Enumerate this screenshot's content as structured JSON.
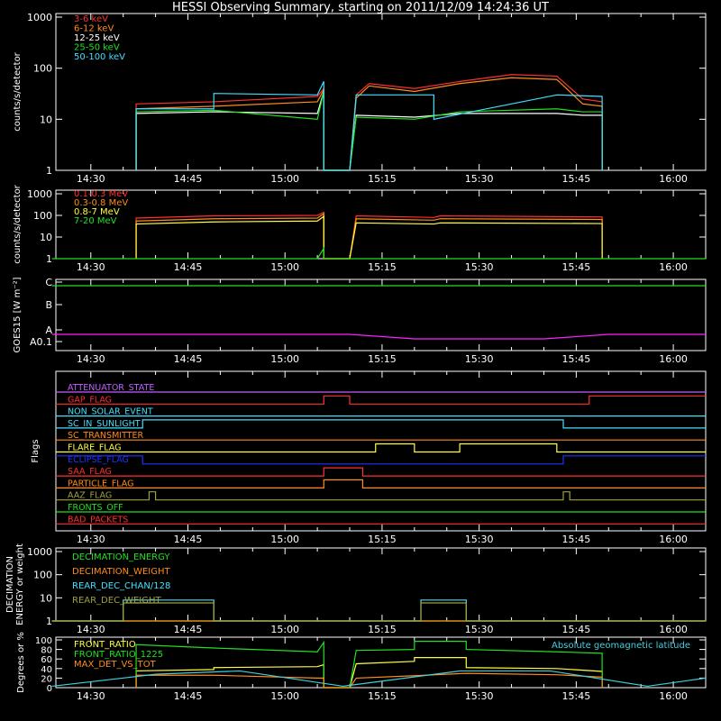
{
  "title": "HESSI Observing Summary, starting on 2011/12/09 14:24:36 UT",
  "time_ticks": [
    "14:30",
    "14:45",
    "15:00",
    "15:15",
    "15:30",
    "15:45",
    "16:00"
  ],
  "chart_data": [
    {
      "type": "line",
      "ylabel": "counts/s/detector",
      "y_scale": "log",
      "ylim": [
        1,
        1000
      ],
      "yticks": [
        "1",
        "10",
        "100",
        "1000"
      ],
      "series": [
        {
          "name": "3-6 keV",
          "color": "#ff3030",
          "x": [
            "14:37",
            "14:37",
            "14:49",
            "15:05",
            "15:06",
            "15:06",
            "15:10",
            "15:11",
            "15:13",
            "15:20",
            "15:27",
            "15:35",
            "15:42",
            "15:46",
            "15:49",
            "15:49"
          ],
          "y": [
            1,
            20,
            22,
            28,
            40,
            1,
            1,
            30,
            50,
            40,
            55,
            75,
            70,
            25,
            22,
            1
          ]
        },
        {
          "name": "6-12 keV",
          "color": "#ff8c1a",
          "x": [
            "14:37",
            "14:37",
            "14:49",
            "15:05",
            "15:06",
            "15:06",
            "15:10",
            "15:11",
            "15:13",
            "15:20",
            "15:27",
            "15:35",
            "15:42",
            "15:46",
            "15:49",
            "15:49"
          ],
          "y": [
            1,
            16,
            18,
            22,
            38,
            1,
            1,
            26,
            45,
            35,
            50,
            65,
            60,
            20,
            18,
            1
          ]
        },
        {
          "name": "12-25 keV",
          "color": "#ffffff",
          "x": [
            "14:37",
            "14:37",
            "14:49",
            "15:05",
            "15:06",
            "15:06",
            "15:10",
            "15:11",
            "15:20",
            "15:27",
            "15:42",
            "15:46",
            "15:49",
            "15:49"
          ],
          "y": [
            1,
            13,
            14,
            13,
            35,
            1,
            1,
            12,
            11,
            13,
            13,
            12,
            12,
            1
          ]
        },
        {
          "name": "25-50 keV",
          "color": "#20e020",
          "x": [
            "14:37",
            "14:37",
            "14:49",
            "15:05",
            "15:06",
            "15:06",
            "15:10",
            "15:11",
            "15:20",
            "15:27",
            "15:42",
            "15:46",
            "15:49",
            "15:49"
          ],
          "y": [
            1,
            14,
            15,
            10,
            35,
            1,
            1,
            11,
            10,
            14,
            16,
            14,
            14,
            1
          ]
        },
        {
          "name": "50-100 keV",
          "color": "#40e0ff",
          "x": [
            "14:37",
            "14:37",
            "14:49",
            "14:49",
            "15:05",
            "15:06",
            "15:06",
            "15:10",
            "15:11",
            "15:23",
            "15:23",
            "15:42",
            "15:49",
            "15:49"
          ],
          "y": [
            1,
            16,
            16,
            32,
            30,
            55,
            1,
            1,
            30,
            30,
            10,
            30,
            28,
            1
          ]
        }
      ]
    },
    {
      "type": "line",
      "ylabel": "counts/s/detector",
      "y_scale": "log",
      "ylim": [
        1,
        1000
      ],
      "yticks": [
        "1",
        "10",
        "100",
        "1000"
      ],
      "series": [
        {
          "name": "0.1-0.3 MeV",
          "color": "#ff3030",
          "x": [
            "14:37",
            "14:37",
            "14:49",
            "15:05",
            "15:06",
            "15:06",
            "15:10",
            "15:11",
            "15:23",
            "15:24",
            "15:49",
            "15:49"
          ],
          "y": [
            1,
            75,
            95,
            100,
            140,
            1,
            1,
            95,
            80,
            95,
            85,
            1
          ]
        },
        {
          "name": "0.3-0.8 MeV",
          "color": "#ff8c1a",
          "x": [
            "14:37",
            "14:37",
            "14:49",
            "15:05",
            "15:06",
            "15:06",
            "15:10",
            "15:11",
            "15:23",
            "15:24",
            "15:49",
            "15:49"
          ],
          "y": [
            1,
            55,
            70,
            75,
            120,
            1,
            1,
            70,
            60,
            70,
            65,
            1
          ]
        },
        {
          "name": "0.8-7 MeV",
          "color": "#ffff40",
          "x": [
            "14:37",
            "14:37",
            "14:49",
            "15:05",
            "15:06",
            "15:06",
            "15:10",
            "15:11",
            "15:23",
            "15:24",
            "15:49",
            "15:49"
          ],
          "y": [
            1,
            40,
            50,
            55,
            90,
            1,
            1,
            45,
            40,
            45,
            42,
            1
          ]
        },
        {
          "name": "7-20 MeV",
          "color": "#20e020",
          "x": [
            "14:24",
            "15:05",
            "15:06",
            "15:06",
            "15:10",
            "15:11",
            "16:05"
          ],
          "y": [
            1,
            1,
            3,
            1,
            1,
            1,
            1
          ]
        }
      ]
    },
    {
      "type": "line",
      "ylabel": "GOES15 [W m⁻²]",
      "yticks": [
        "A0.1",
        "A",
        "B",
        "C"
      ],
      "series": [
        {
          "name": "",
          "color": "#20e020",
          "x": [
            "14:24",
            "14:45",
            "15:00",
            "15:15",
            "15:30",
            "15:45",
            "16:05"
          ],
          "y": [
            "C",
            "C",
            "C",
            "C",
            "C",
            "C",
            "C"
          ]
        },
        {
          "name": "",
          "color": "#ff20ff",
          "x": [
            "14:24",
            "14:35",
            "14:45",
            "15:00",
            "15:10",
            "15:20",
            "15:30",
            "15:40",
            "15:50",
            "16:00",
            "16:05"
          ],
          "y": [
            "A0.1",
            "A0.1",
            "A0.1",
            "A0.1",
            "A0.1",
            "A",
            "A",
            "A",
            "A0.1",
            "A0.1",
            "A0.1"
          ]
        }
      ]
    },
    {
      "type": "line",
      "ylabel": "Flags",
      "series": [
        {
          "name": "ATTENUATOR_STATE",
          "color": "#c060ff",
          "states": [
            [
              "14:24",
              0
            ]
          ]
        },
        {
          "name": "GAP_FLAG",
          "color": "#ff3030",
          "states": [
            [
              "14:24",
              0
            ],
            [
              "15:06",
              1
            ],
            [
              "15:10",
              0
            ],
            [
              "15:47",
              1
            ]
          ]
        },
        {
          "name": "NON_SOLAR_EVENT",
          "color": "#40e0ff",
          "states": [
            [
              "14:24",
              0
            ]
          ]
        },
        {
          "name": "SC_IN_SUNLIGHT",
          "color": "#40e0ff",
          "states": [
            [
              "14:24",
              0
            ],
            [
              "14:38",
              1
            ],
            [
              "15:43",
              0
            ]
          ]
        },
        {
          "name": "SC_TRANSMITTER",
          "color": "#ff8c1a",
          "states": [
            [
              "14:24",
              0
            ]
          ]
        },
        {
          "name": "FLARE_FLAG",
          "color": "#ffff40",
          "states": [
            [
              "14:24",
              0
            ],
            [
              "15:14",
              1
            ],
            [
              "15:20",
              0
            ],
            [
              "15:27",
              1
            ],
            [
              "15:42",
              0
            ]
          ]
        },
        {
          "name": "ECLIPSE_FLAG",
          "color": "#2030ff",
          "states": [
            [
              "14:24",
              1
            ],
            [
              "14:38",
              0
            ],
            [
              "15:43",
              1
            ]
          ]
        },
        {
          "name": "SAA_FLAG",
          "color": "#ff3030",
          "states": [
            [
              "14:24",
              0
            ],
            [
              "15:06",
              1
            ],
            [
              "15:12",
              0
            ]
          ]
        },
        {
          "name": "PARTICLE_FLAG",
          "color": "#ff8c1a",
          "states": [
            [
              "14:24",
              0
            ],
            [
              "15:06",
              1
            ],
            [
              "15:12",
              0
            ]
          ]
        },
        {
          "name": "AAZ_FLAG",
          "color": "#a0a040",
          "states": [
            [
              "14:24",
              0
            ],
            [
              "14:39",
              1
            ],
            [
              "14:40",
              0
            ],
            [
              "15:43",
              1
            ],
            [
              "15:44",
              0
            ]
          ]
        },
        {
          "name": "FRONTS_OFF",
          "color": "#20e020",
          "states": [
            [
              "14:24",
              0
            ]
          ]
        },
        {
          "name": "BAD_PACKETS",
          "color": "#ff3030",
          "states": [
            [
              "14:24",
              0
            ]
          ]
        }
      ]
    },
    {
      "type": "line",
      "ylabel": "DECIMATION ENERGY or weight",
      "y_scale": "log",
      "ylim": [
        1,
        1000
      ],
      "yticks": [
        "1",
        "10",
        "100",
        "1000"
      ],
      "series": [
        {
          "name": "DECIMATION_ENERGY",
          "color": "#20e020",
          "x": [
            "14:24",
            "16:05"
          ],
          "y": [
            1,
            1
          ]
        },
        {
          "name": "DECIMATION_WEIGHT",
          "color": "#ff8c1a",
          "x": [
            "14:24",
            "16:05"
          ],
          "y": [
            1,
            1
          ]
        },
        {
          "name": "REAR_DEC_CHAN/128",
          "color": "#40e0ff",
          "x": [
            "14:24",
            "14:35",
            "14:35",
            "14:49",
            "14:49",
            "15:21",
            "15:21",
            "15:28",
            "15:28",
            "16:05"
          ],
          "y": [
            1,
            1,
            8,
            8,
            1,
            1,
            8,
            8,
            1,
            1
          ]
        },
        {
          "name": "REAR_DEC_WEIGHT",
          "color": "#a0a040",
          "x": [
            "14:24",
            "14:35",
            "14:35",
            "14:49",
            "14:49",
            "15:21",
            "15:21",
            "15:28",
            "15:28",
            "16:05"
          ],
          "y": [
            1,
            1,
            6,
            6,
            1,
            1,
            6,
            6,
            1,
            1
          ]
        }
      ]
    },
    {
      "type": "line",
      "ylabel": "Degrees or %",
      "ylim": [
        0,
        100
      ],
      "yticks": [
        "0",
        "20",
        "40",
        "60",
        "80",
        "100"
      ],
      "series": [
        {
          "name": "FRONT_RATIO",
          "color": "#ffff40",
          "x": [
            "14:37",
            "14:37",
            "14:49",
            "14:49",
            "15:05",
            "15:06",
            "15:06",
            "15:10",
            "15:11",
            "15:20",
            "15:20",
            "15:28",
            "15:28",
            "15:42",
            "15:49",
            "15:49"
          ],
          "y": [
            0,
            35,
            38,
            42,
            44,
            48,
            0,
            0,
            50,
            55,
            63,
            63,
            42,
            40,
            34,
            0
          ]
        },
        {
          "name": "FRONT_RATIO_1225",
          "color": "#20e020",
          "x": [
            "14:37",
            "14:37",
            "14:49",
            "15:05",
            "15:06",
            "15:06",
            "15:10",
            "15:11",
            "15:20",
            "15:20",
            "15:28",
            "15:28",
            "15:42",
            "15:49",
            "15:49"
          ],
          "y": [
            0,
            90,
            83,
            75,
            95,
            0,
            0,
            78,
            80,
            97,
            97,
            80,
            75,
            72,
            0
          ]
        },
        {
          "name": "MAX_DET_VS_TOT",
          "color": "#ff8c1a",
          "x": [
            "14:37",
            "14:37",
            "14:49",
            "15:05",
            "15:06",
            "15:06",
            "15:10",
            "15:11",
            "15:20",
            "15:28",
            "15:42",
            "15:49",
            "15:49"
          ],
          "y": [
            0,
            26,
            26,
            20,
            20,
            0,
            0,
            20,
            25,
            30,
            27,
            22,
            0
          ]
        },
        {
          "name": "Absolute geomagnetic latitude",
          "color": "#40d0e0",
          "x": [
            "14:24",
            "14:40",
            "14:53",
            "15:09",
            "15:27",
            "15:41",
            "15:56",
            "16:05"
          ],
          "y": [
            3,
            28,
            35,
            3,
            35,
            35,
            3,
            20
          ]
        }
      ]
    }
  ]
}
